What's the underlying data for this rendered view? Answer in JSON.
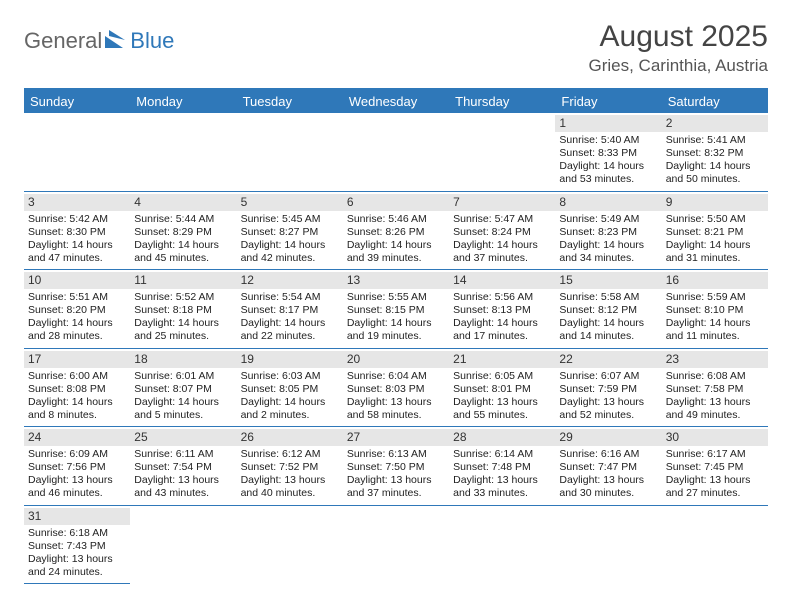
{
  "logo": {
    "part1": "General",
    "part2": "Blue"
  },
  "title": "August 2025",
  "location": "Gries, Carinthia, Austria",
  "colors": {
    "accent": "#2f78b9",
    "dayBg": "#e6e6e6",
    "text": "#333333"
  },
  "dayHeaders": [
    "Sunday",
    "Monday",
    "Tuesday",
    "Wednesday",
    "Thursday",
    "Friday",
    "Saturday"
  ],
  "leadingBlanks": 5,
  "days": [
    {
      "n": 1,
      "sr": "5:40 AM",
      "ss": "8:33 PM",
      "dl": "14 hours and 53 minutes."
    },
    {
      "n": 2,
      "sr": "5:41 AM",
      "ss": "8:32 PM",
      "dl": "14 hours and 50 minutes."
    },
    {
      "n": 3,
      "sr": "5:42 AM",
      "ss": "8:30 PM",
      "dl": "14 hours and 47 minutes."
    },
    {
      "n": 4,
      "sr": "5:44 AM",
      "ss": "8:29 PM",
      "dl": "14 hours and 45 minutes."
    },
    {
      "n": 5,
      "sr": "5:45 AM",
      "ss": "8:27 PM",
      "dl": "14 hours and 42 minutes."
    },
    {
      "n": 6,
      "sr": "5:46 AM",
      "ss": "8:26 PM",
      "dl": "14 hours and 39 minutes."
    },
    {
      "n": 7,
      "sr": "5:47 AM",
      "ss": "8:24 PM",
      "dl": "14 hours and 37 minutes."
    },
    {
      "n": 8,
      "sr": "5:49 AM",
      "ss": "8:23 PM",
      "dl": "14 hours and 34 minutes."
    },
    {
      "n": 9,
      "sr": "5:50 AM",
      "ss": "8:21 PM",
      "dl": "14 hours and 31 minutes."
    },
    {
      "n": 10,
      "sr": "5:51 AM",
      "ss": "8:20 PM",
      "dl": "14 hours and 28 minutes."
    },
    {
      "n": 11,
      "sr": "5:52 AM",
      "ss": "8:18 PM",
      "dl": "14 hours and 25 minutes."
    },
    {
      "n": 12,
      "sr": "5:54 AM",
      "ss": "8:17 PM",
      "dl": "14 hours and 22 minutes."
    },
    {
      "n": 13,
      "sr": "5:55 AM",
      "ss": "8:15 PM",
      "dl": "14 hours and 19 minutes."
    },
    {
      "n": 14,
      "sr": "5:56 AM",
      "ss": "8:13 PM",
      "dl": "14 hours and 17 minutes."
    },
    {
      "n": 15,
      "sr": "5:58 AM",
      "ss": "8:12 PM",
      "dl": "14 hours and 14 minutes."
    },
    {
      "n": 16,
      "sr": "5:59 AM",
      "ss": "8:10 PM",
      "dl": "14 hours and 11 minutes."
    },
    {
      "n": 17,
      "sr": "6:00 AM",
      "ss": "8:08 PM",
      "dl": "14 hours and 8 minutes."
    },
    {
      "n": 18,
      "sr": "6:01 AM",
      "ss": "8:07 PM",
      "dl": "14 hours and 5 minutes."
    },
    {
      "n": 19,
      "sr": "6:03 AM",
      "ss": "8:05 PM",
      "dl": "14 hours and 2 minutes."
    },
    {
      "n": 20,
      "sr": "6:04 AM",
      "ss": "8:03 PM",
      "dl": "13 hours and 58 minutes."
    },
    {
      "n": 21,
      "sr": "6:05 AM",
      "ss": "8:01 PM",
      "dl": "13 hours and 55 minutes."
    },
    {
      "n": 22,
      "sr": "6:07 AM",
      "ss": "7:59 PM",
      "dl": "13 hours and 52 minutes."
    },
    {
      "n": 23,
      "sr": "6:08 AM",
      "ss": "7:58 PM",
      "dl": "13 hours and 49 minutes."
    },
    {
      "n": 24,
      "sr": "6:09 AM",
      "ss": "7:56 PM",
      "dl": "13 hours and 46 minutes."
    },
    {
      "n": 25,
      "sr": "6:11 AM",
      "ss": "7:54 PM",
      "dl": "13 hours and 43 minutes."
    },
    {
      "n": 26,
      "sr": "6:12 AM",
      "ss": "7:52 PM",
      "dl": "13 hours and 40 minutes."
    },
    {
      "n": 27,
      "sr": "6:13 AM",
      "ss": "7:50 PM",
      "dl": "13 hours and 37 minutes."
    },
    {
      "n": 28,
      "sr": "6:14 AM",
      "ss": "7:48 PM",
      "dl": "13 hours and 33 minutes."
    },
    {
      "n": 29,
      "sr": "6:16 AM",
      "ss": "7:47 PM",
      "dl": "13 hours and 30 minutes."
    },
    {
      "n": 30,
      "sr": "6:17 AM",
      "ss": "7:45 PM",
      "dl": "13 hours and 27 minutes."
    },
    {
      "n": 31,
      "sr": "6:18 AM",
      "ss": "7:43 PM",
      "dl": "13 hours and 24 minutes."
    }
  ],
  "labels": {
    "sunrise": "Sunrise: ",
    "sunset": "Sunset: ",
    "daylight": "Daylight: "
  }
}
